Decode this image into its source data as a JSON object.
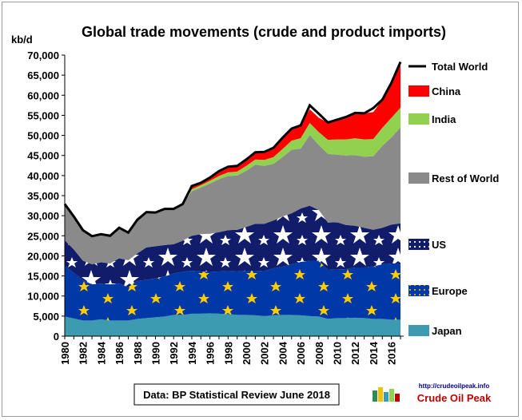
{
  "chart_data": {
    "type": "area",
    "stacking": "stacked",
    "title": "Global trade movements (crude and product imports)",
    "ylabel": "kb/d",
    "xlabel": "",
    "ylim": [
      0,
      70000
    ],
    "y_ticks": [
      "0",
      "5,000",
      "10,000",
      "15,000",
      "20,000",
      "25,000",
      "30,000",
      "35,000",
      "40,000",
      "45,000",
      "50,000",
      "55,000",
      "60,000",
      "65,000",
      "70,000"
    ],
    "x_ticks": [
      "1980",
      "1982",
      "1984",
      "1986",
      "1988",
      "1990",
      "1992",
      "1994",
      "1996",
      "1998",
      "2000",
      "2002",
      "2004",
      "2006",
      "2008",
      "2010",
      "2012",
      "2014",
      "2016"
    ],
    "grid": false,
    "legend_position": "right",
    "x": [
      1980,
      1981,
      1982,
      1983,
      1984,
      1985,
      1986,
      1987,
      1988,
      1989,
      1990,
      1991,
      1992,
      1993,
      1994,
      1995,
      1996,
      1997,
      1998,
      1999,
      2000,
      2001,
      2002,
      2003,
      2004,
      2005,
      2006,
      2007,
      2008,
      2009,
      2010,
      2011,
      2012,
      2013,
      2014,
      2015,
      2016,
      2017
    ],
    "series": [
      {
        "name": "Japan",
        "color": "#3c9ab1",
        "pattern": "none",
        "values": [
          4900,
          4400,
          3900,
          3900,
          4200,
          3900,
          3900,
          3900,
          4300,
          4500,
          4700,
          4900,
          5300,
          5300,
          5600,
          5600,
          5700,
          5600,
          5500,
          5300,
          5300,
          5200,
          5000,
          5200,
          5300,
          5300,
          5200,
          5000,
          4900,
          4300,
          4500,
          4500,
          4600,
          4500,
          4300,
          4300,
          4100,
          4100
        ]
      },
      {
        "name": "Europe",
        "color": "#0038a8",
        "pattern": "eu-stars",
        "values": [
          12600,
          11400,
          10100,
          9000,
          8900,
          9000,
          9200,
          8300,
          9500,
          9500,
          9700,
          10000,
          10300,
          10700,
          10700,
          10500,
          10300,
          10500,
          10700,
          10800,
          11000,
          11100,
          11200,
          11700,
          12000,
          12600,
          13300,
          13800,
          13900,
          12200,
          12100,
          12200,
          12500,
          12600,
          13100,
          13600,
          14000,
          14000
        ]
      },
      {
        "name": "US",
        "color": "#111d6b",
        "pattern": "us-stars",
        "values": [
          6400,
          5800,
          4800,
          5000,
          5300,
          5200,
          6300,
          6700,
          6800,
          8100,
          8000,
          7800,
          7300,
          7800,
          8700,
          9300,
          9500,
          9800,
          10200,
          10400,
          10900,
          11700,
          11800,
          11900,
          12500,
          12700,
          13300,
          13700,
          12600,
          11800,
          11800,
          11000,
          10400,
          9900,
          9100,
          9100,
          9700,
          10000
        ]
      },
      {
        "name": "Rest of World",
        "color": "#8a8a8a",
        "pattern": "none",
        "values": [
          9000,
          8200,
          7600,
          7000,
          7000,
          6900,
          7600,
          6900,
          8400,
          8800,
          8400,
          9000,
          8800,
          9100,
          11100,
          11600,
          12500,
          13200,
          13500,
          13500,
          14000,
          14700,
          14400,
          14100,
          14800,
          15800,
          14900,
          17600,
          16200,
          17100,
          16800,
          17300,
          17600,
          17700,
          18300,
          20400,
          21700,
          23900
        ]
      },
      {
        "name": "India",
        "color": "#92d050",
        "pattern": "none",
        "values": [
          0,
          0,
          0,
          0,
          0,
          0,
          0,
          0,
          0,
          0,
          0,
          0,
          0,
          0,
          500,
          600,
          700,
          800,
          900,
          1000,
          1200,
          1300,
          1500,
          1700,
          2000,
          2300,
          2600,
          3000,
          3200,
          3500,
          3800,
          4000,
          4200,
          4300,
          4300,
          4500,
          4900,
          4900
        ]
      },
      {
        "name": "China",
        "color": "#ff0000",
        "pattern": "none",
        "values": [
          0,
          0,
          0,
          0,
          0,
          0,
          0,
          0,
          0,
          0,
          0,
          0,
          0,
          0,
          500,
          600,
          800,
          1200,
          1400,
          1400,
          1600,
          1800,
          2000,
          2300,
          2800,
          3000,
          3200,
          3400,
          3600,
          4300,
          4900,
          5600,
          6300,
          6500,
          6700,
          7000,
          8700,
          11400
        ]
      }
    ],
    "total_series": {
      "name": "Total World",
      "color": "#000000",
      "values": [
        32900,
        29800,
        26400,
        24900,
        25400,
        25000,
        27000,
        25800,
        29000,
        30900,
        30800,
        31700,
        31700,
        32900,
        37400,
        38200,
        39500,
        41100,
        42200,
        42400,
        44000,
        45800,
        45900,
        46900,
        49400,
        51700,
        52500,
        57500,
        55400,
        53200,
        53900,
        54600,
        55600,
        55500,
        56800,
        58900,
        63100,
        68300
      ]
    }
  },
  "footer": {
    "source": "Data: BP Statistical Review June 2018",
    "logo_url": "http://crudeoilpeak.info",
    "logo_name": "Crude Oil Peak"
  }
}
